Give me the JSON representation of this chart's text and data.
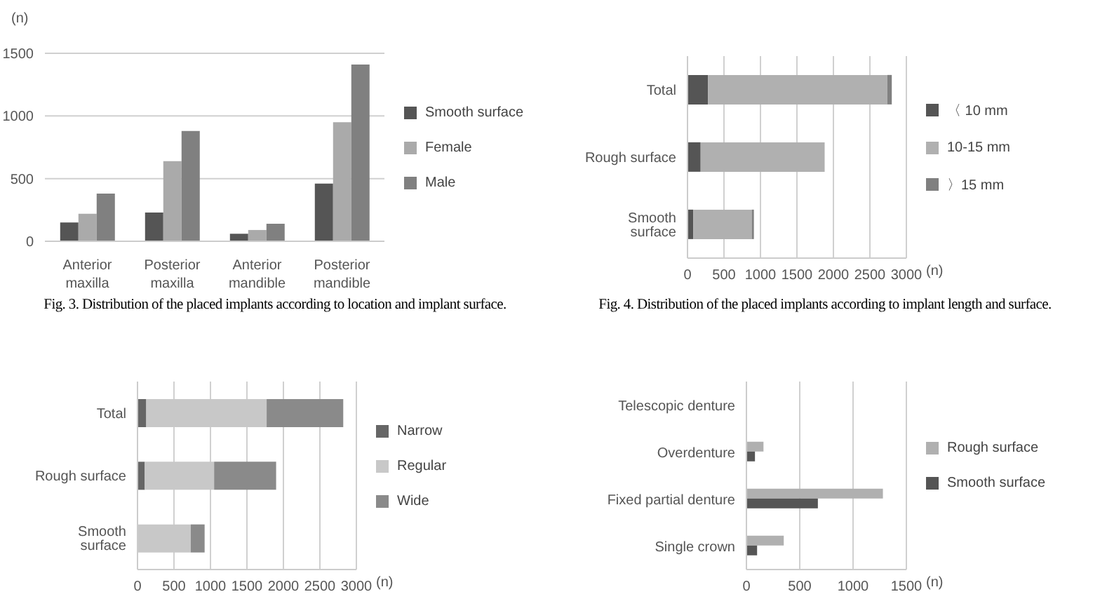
{
  "chart_data": [
    {
      "type": "bar",
      "categories": [
        "Anterior maxilla",
        "Posterior maxilla",
        "Anterior mandible",
        "Posterior mandible"
      ],
      "series": [
        {
          "name": "Smooth surface",
          "color": "#555555",
          "values": [
            150,
            230,
            60,
            460
          ]
        },
        {
          "name": "Female",
          "color": "#aaaaaa",
          "values": [
            220,
            640,
            90,
            950
          ]
        },
        {
          "name": "Male",
          "color": "#808080",
          "values": [
            380,
            880,
            140,
            1410
          ]
        }
      ],
      "ylabel": "(n)",
      "ylim": [
        0,
        1500
      ],
      "yticks": [
        0,
        500,
        1000,
        1500
      ],
      "grid": "y",
      "legend": "right",
      "annotations": [
        "Fig. 3. Distribution of the placed implants according to location and implant surface."
      ]
    },
    {
      "type": "bar",
      "orientation": "horizontal",
      "stacked": true,
      "categories": [
        "Total",
        "Rough surface",
        "Smooth surface"
      ],
      "series": [
        {
          "name": "〈 10 mm",
          "color": "#555555",
          "values": [
            280,
            180,
            80
          ]
        },
        {
          "name": "10-15 mm",
          "color": "#b0b0b0",
          "values": [
            2460,
            1700,
            800
          ]
        },
        {
          "name": "〉15 mm",
          "color": "#808080",
          "values": [
            60,
            0,
            30
          ]
        }
      ],
      "xlabel": "(n)",
      "xlim": [
        0,
        3000
      ],
      "xticks": [
        0,
        500,
        1000,
        1500,
        2000,
        2500,
        3000
      ],
      "grid": "x",
      "legend": "right",
      "annotations": [
        "Fig. 4. Distribution of the placed implants according to implant length and surface."
      ]
    },
    {
      "type": "bar",
      "orientation": "horizontal",
      "stacked": true,
      "categories": [
        "Total",
        "Rough surface",
        "Smooth surface"
      ],
      "series": [
        {
          "name": "Narrow",
          "color": "#666666",
          "values": [
            120,
            100,
            0
          ]
        },
        {
          "name": "Regular",
          "color": "#c8c8c8",
          "values": [
            1650,
            950,
            730
          ]
        },
        {
          "name": "Wide",
          "color": "#8a8a8a",
          "values": [
            1050,
            850,
            190
          ]
        }
      ],
      "xlabel": "(n)",
      "xlim": [
        0,
        3000
      ],
      "xticks": [
        0,
        500,
        1000,
        1500,
        2000,
        2500,
        3000
      ],
      "grid": "x",
      "legend": "right"
    },
    {
      "type": "bar",
      "orientation": "horizontal",
      "categories": [
        "Telescopic denture",
        "Overdenture",
        "Fixed partial denture",
        "Single crown"
      ],
      "series": [
        {
          "name": "Rough surface",
          "color": "#b0b0b0",
          "values": [
            0,
            160,
            1280,
            350
          ]
        },
        {
          "name": "Smooth surface",
          "color": "#555555",
          "values": [
            0,
            80,
            670,
            100
          ]
        }
      ],
      "xlabel": "(n)",
      "xlim": [
        0,
        1500
      ],
      "xticks": [
        0,
        500,
        1000,
        1500
      ],
      "grid": "x",
      "legend": "right"
    }
  ]
}
